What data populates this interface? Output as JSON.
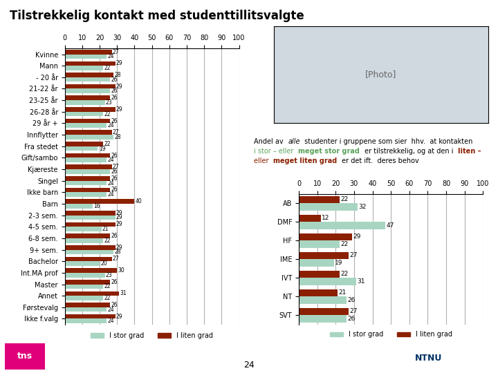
{
  "title": "Tilstrekkelig kontakt med studenttillitsvalgte",
  "chart_data": [
    {
      "type": "bar",
      "orientation": "horizontal",
      "categories": [
        "Kvinne",
        "Mann",
        "- 20 år",
        "21-22 år",
        "23-25 år",
        "26-28 år",
        "29 år +",
        "Innflytter",
        "Fra stedet",
        "Gift/sambo",
        "Kjæreste",
        "Singel",
        "Ikke barn",
        "Barn",
        "2-3 sem.",
        "4-5 sem.",
        "6-8 sem.",
        "9+ sem.",
        "Bachelor",
        "Int.MA prof",
        "Master",
        "Annet",
        "Førstevalg",
        "Ikke f.valg"
      ],
      "series": [
        {
          "name": "I stor grad",
          "color": "#a8d5c2",
          "values": [
            24,
            22,
            26,
            26,
            23,
            22,
            24,
            28,
            19,
            24,
            26,
            24,
            24,
            16,
            29,
            21,
            22,
            28,
            20,
            23,
            22,
            22,
            24,
            24
          ]
        },
        {
          "name": "I liten grad",
          "color": "#8b2000",
          "values": [
            27,
            29,
            28,
            29,
            26,
            29,
            26,
            27,
            22,
            26,
            27,
            26,
            26,
            40,
            29,
            29,
            26,
            29,
            27,
            30,
            26,
            31,
            26,
            29
          ]
        }
      ],
      "xlim": [
        0,
        100
      ],
      "xticks": [
        0,
        10,
        20,
        30,
        40,
        50,
        60,
        70,
        80,
        90,
        100
      ],
      "grid": true,
      "data_labels": true,
      "legend": "upper center"
    },
    {
      "type": "bar",
      "orientation": "horizontal",
      "categories": [
        "AB",
        "DMF",
        "HF",
        "IME",
        "IVT",
        "NT",
        "SVT"
      ],
      "series": [
        {
          "name": "I stor grad",
          "color": "#a8d5c2",
          "values": [
            32,
            47,
            22,
            19,
            31,
            26,
            26
          ]
        },
        {
          "name": "I liten grad",
          "color": "#8b2000",
          "values": [
            22,
            12,
            29,
            27,
            22,
            21,
            27
          ]
        }
      ],
      "xlim": [
        0,
        100
      ],
      "xticks": [
        0,
        10,
        20,
        30,
        40,
        50,
        60,
        70,
        80,
        90,
        100
      ],
      "grid": true,
      "data_labels": true,
      "legend": "upper center"
    }
  ],
  "annotation_lines": [
    [
      {
        "text": "Andel av ",
        "color": "#000000"
      },
      {
        "text": "alle",
        "color": "#000000",
        "style": "italic"
      },
      {
        "text": " studenter i gruppene som sier  hhv.  at kontakten",
        "color": "#000000"
      }
    ],
    [
      {
        "text": "i stor – eller ",
        "color": "#5ba35b"
      },
      {
        "text": "meget stor grad",
        "color": "#5ba35b",
        "weight": "bold"
      },
      {
        "text": " er tilstrekkelig, og at den i ",
        "color": "#000000"
      },
      {
        "text": "liten –",
        "color": "#8b2000",
        "weight": "bold"
      }
    ],
    [
      {
        "text": "eller ",
        "color": "#8b2000"
      },
      {
        "text": "meget liten grad",
        "color": "#8b2000",
        "weight": "bold"
      },
      {
        "text": " er det ift.  deres behov",
        "color": "#000000"
      }
    ]
  ],
  "annotations": [
    {
      "text": "[Photo]"
    },
    {
      "text": "tns"
    },
    {
      "text": "NTNU"
    },
    {
      "text": "24"
    }
  ]
}
